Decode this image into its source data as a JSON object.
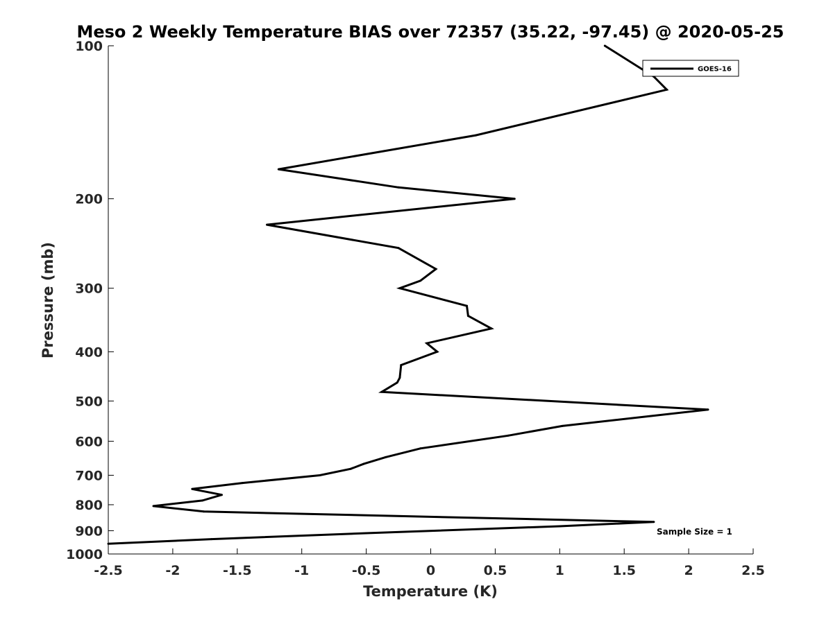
{
  "chart_data": {
    "type": "line",
    "title": "Meso 2 Weekly Temperature BIAS over 72357 (35.22, -97.45) @ 2020-05-25",
    "xlabel": "Temperature (K)",
    "ylabel": "Pressure (mb)",
    "xlim": [
      -2.5,
      2.5
    ],
    "ylim": [
      100,
      1000
    ],
    "y_scale": "log",
    "y_reversed": true,
    "x_ticks": [
      -2.5,
      -2,
      -1.5,
      -1,
      -0.5,
      0,
      0.5,
      1,
      1.5,
      2,
      2.5
    ],
    "x_tick_labels": [
      "-2.5",
      "-2",
      "-1.5",
      "-1",
      "-0.5",
      "0",
      "0.5",
      "1",
      "1.5",
      "2",
      "2.5"
    ],
    "y_ticks": [
      100,
      200,
      300,
      400,
      500,
      600,
      700,
      800,
      900,
      1000
    ],
    "y_tick_labels": [
      "100",
      "200",
      "300",
      "400",
      "500",
      "600",
      "700",
      "800",
      "900",
      "1000"
    ],
    "grid": false,
    "legend_position": "top-right",
    "line_color": "#000000",
    "series": [
      {
        "name": "GOES-16",
        "points": [
          {
            "x": 1.35,
            "y": 100
          },
          {
            "x": 1.73,
            "y": 115
          },
          {
            "x": 1.83,
            "y": 122
          },
          {
            "x": 0.35,
            "y": 150
          },
          {
            "x": -1.18,
            "y": 175
          },
          {
            "x": -0.25,
            "y": 190
          },
          {
            "x": 0.65,
            "y": 200
          },
          {
            "x": -1.27,
            "y": 225
          },
          {
            "x": -0.25,
            "y": 250
          },
          {
            "x": 0.04,
            "y": 275
          },
          {
            "x": -0.08,
            "y": 290
          },
          {
            "x": -0.24,
            "y": 300
          },
          {
            "x": 0.28,
            "y": 325
          },
          {
            "x": 0.29,
            "y": 340
          },
          {
            "x": 0.47,
            "y": 360
          },
          {
            "x": -0.03,
            "y": 385
          },
          {
            "x": 0.05,
            "y": 400
          },
          {
            "x": -0.23,
            "y": 425
          },
          {
            "x": -0.24,
            "y": 450
          },
          {
            "x": -0.26,
            "y": 460
          },
          {
            "x": -0.38,
            "y": 480
          },
          {
            "x": 2.15,
            "y": 520
          },
          {
            "x": 1.02,
            "y": 560
          },
          {
            "x": 0.6,
            "y": 585
          },
          {
            "x": -0.08,
            "y": 620
          },
          {
            "x": -0.35,
            "y": 645
          },
          {
            "x": -0.52,
            "y": 665
          },
          {
            "x": -0.62,
            "y": 680
          },
          {
            "x": -0.86,
            "y": 700
          },
          {
            "x": -1.46,
            "y": 725
          },
          {
            "x": -1.85,
            "y": 745
          },
          {
            "x": -1.62,
            "y": 765
          },
          {
            "x": -1.77,
            "y": 785
          },
          {
            "x": -2.15,
            "y": 805
          },
          {
            "x": -1.76,
            "y": 825
          },
          {
            "x": 1.73,
            "y": 865
          },
          {
            "x": 1.0,
            "y": 882
          },
          {
            "x": -0.5,
            "y": 910
          },
          {
            "x": -1.7,
            "y": 935
          },
          {
            "x": -2.5,
            "y": 955
          }
        ]
      }
    ],
    "annotations": [
      {
        "text": "Sample Size = 1",
        "position": "bottom-right"
      }
    ]
  }
}
